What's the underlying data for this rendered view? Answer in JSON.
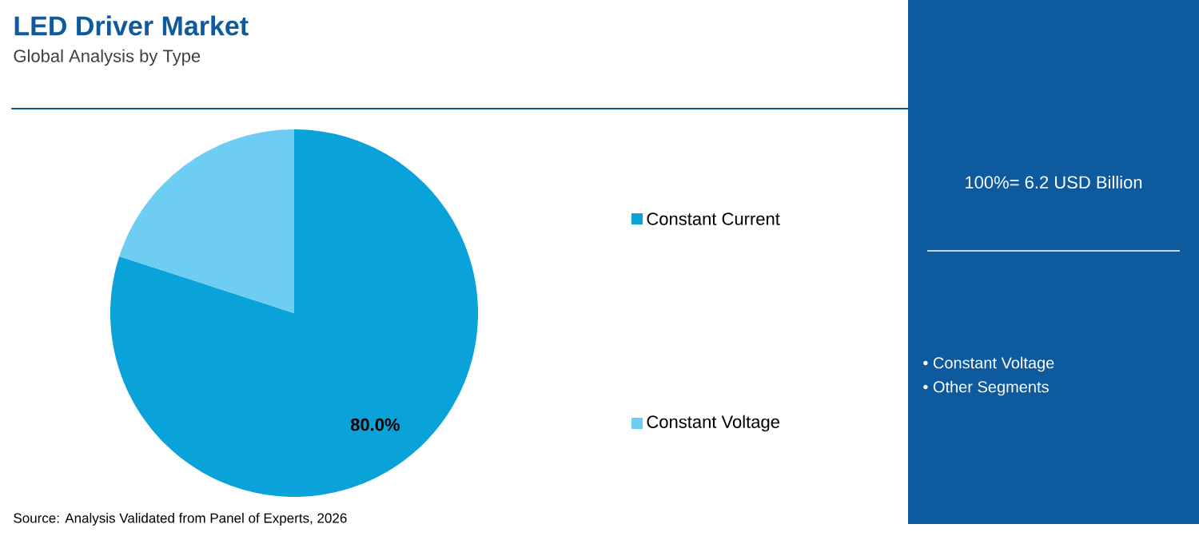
{
  "chart_data": {
    "type": "pie",
    "title": "LED Driver Market",
    "subtitle": "Global Analysis by Type",
    "categories": [
      "Constant Current",
      "Constant Voltage"
    ],
    "values": [
      80,
      20
    ],
    "value_labels": [
      "80.0%",
      null
    ],
    "colors": [
      "#0aa3d9",
      "#6dcdf2"
    ],
    "legend": "right",
    "annotations": [
      "Source: Analysis Validated from Panel of Experts, 2026",
      "100%= 6.2 USD Billion",
      "• Constant Voltage",
      "• Other Segments"
    ]
  }
}
